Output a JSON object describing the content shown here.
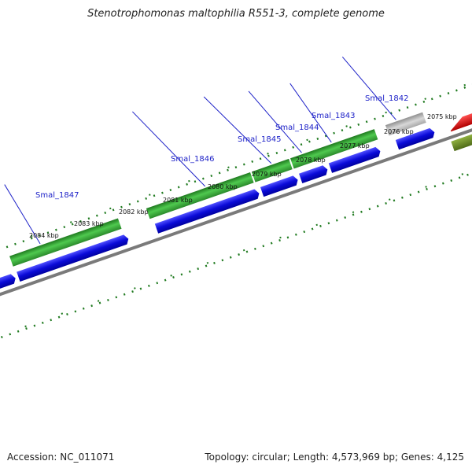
{
  "title": "Stenotrophomonas maltophilia R551-3, complete genome",
  "footer": {
    "accession": "Accession: NC_011071",
    "summary": "Topology: circular; Length: 4,573,969 bp; Genes: 4,125"
  },
  "kbp_labels": [
    "2084 kbp",
    "2083 kbp",
    "2082 kbp",
    "2081 kbp",
    "2080 kbp",
    "2079 kbp",
    "2078 kbp",
    "2077 kbp",
    "2076 kbp",
    "2075 kbp"
  ],
  "gene_labels": [
    "Smal_1847",
    "Smal_1846",
    "Smal_1845",
    "Smal_1844",
    "Smal_1843",
    "Smal_1842"
  ],
  "colors": {
    "backbone": "#808080",
    "cds_blue": "#1414e6",
    "gene_green": "#2fa02f",
    "pseudo_gray": "#b8b8b8",
    "red": "#e60000",
    "olive": "#6b8e23",
    "tick": "#1f7a1f",
    "label_blue": "#1e22c8"
  }
}
